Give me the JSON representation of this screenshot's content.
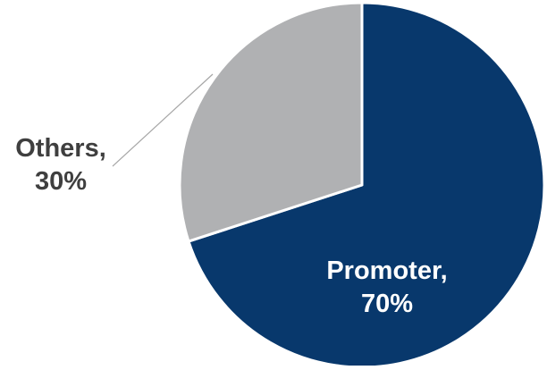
{
  "chart_data": {
    "type": "pie",
    "title": "",
    "slices": [
      {
        "label": "Promoter",
        "value": 70,
        "value_label": "70%",
        "color": "#08386C"
      },
      {
        "label": "Others",
        "value": 30,
        "value_label": "30%",
        "color": "#B0B1B3"
      }
    ],
    "start_angle_deg": 0,
    "direction": "clockwise",
    "legend": "none",
    "label_colors": {
      "Promoter": "#FFFFFF",
      "Others": "#3F3F3F"
    },
    "leader_line_color": "#A6A6A6"
  }
}
